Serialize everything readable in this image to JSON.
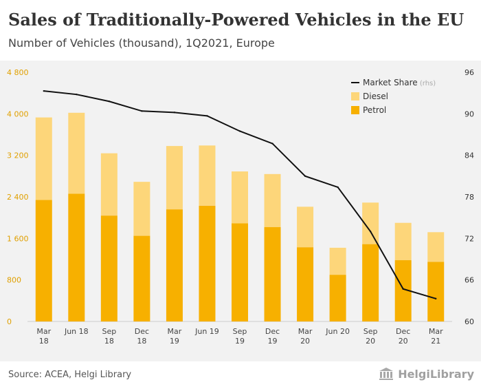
{
  "title": "Sales of Traditionally-Powered Vehicles in the EU",
  "subtitle": "Number of Vehicles (thousand), 1Q2021, Europe",
  "source": "Source: ACEA, Helgi Library",
  "logo": {
    "text": "HelgiLibrary",
    "icon": "helgi-library-building-icon"
  },
  "colors": {
    "petrol": "#f7b000",
    "diesel": "#fdd67a",
    "market_share": "#111111",
    "background": "#f2f2f2"
  },
  "chart_data": {
    "type": "bar",
    "stacked": true,
    "categories": [
      [
        "Mar",
        "18"
      ],
      [
        "Jun 18"
      ],
      [
        "Sep",
        "18"
      ],
      [
        "Dec",
        "18"
      ],
      [
        "Mar",
        "19"
      ],
      [
        "Jun 19"
      ],
      [
        "Sep",
        "19"
      ],
      [
        "Dec",
        "19"
      ],
      [
        "Mar",
        "20"
      ],
      [
        "Jun 20"
      ],
      [
        "Sep",
        "20"
      ],
      [
        "Dec",
        "20"
      ],
      [
        "Mar",
        "21"
      ]
    ],
    "series": [
      {
        "name": "Petrol",
        "axis": "left",
        "values": [
          2340,
          2460,
          2040,
          1650,
          2160,
          2230,
          1890,
          1820,
          1430,
          900,
          1490,
          1180,
          1150
        ]
      },
      {
        "name": "Diesel",
        "axis": "left",
        "values": [
          1590,
          1560,
          1200,
          1040,
          1220,
          1160,
          1000,
          1020,
          780,
          520,
          800,
          720,
          570
        ]
      },
      {
        "name": "Market Share",
        "unit": "(rhs)",
        "type": "line",
        "axis": "right",
        "values": [
          93.3,
          92.8,
          91.8,
          90.4,
          90.2,
          89.7,
          87.5,
          85.7,
          81.0,
          79.4,
          73.0,
          64.7,
          63.3
        ]
      }
    ],
    "y_left": {
      "min": 0,
      "max": 4800,
      "ticks": [
        "0",
        "800",
        "1 600",
        "2 400",
        "3 200",
        "4 000",
        "4 800"
      ]
    },
    "y_right": {
      "min": 60,
      "max": 96,
      "ticks": [
        "60",
        "66",
        "72",
        "78",
        "84",
        "90",
        "96"
      ]
    },
    "legend": {
      "position": "top-right",
      "items": [
        {
          "label": "Market Share",
          "suffix": "(rhs)",
          "kind": "line"
        },
        {
          "label": "Diesel",
          "kind": "box"
        },
        {
          "label": "Petrol",
          "kind": "box"
        }
      ]
    }
  }
}
